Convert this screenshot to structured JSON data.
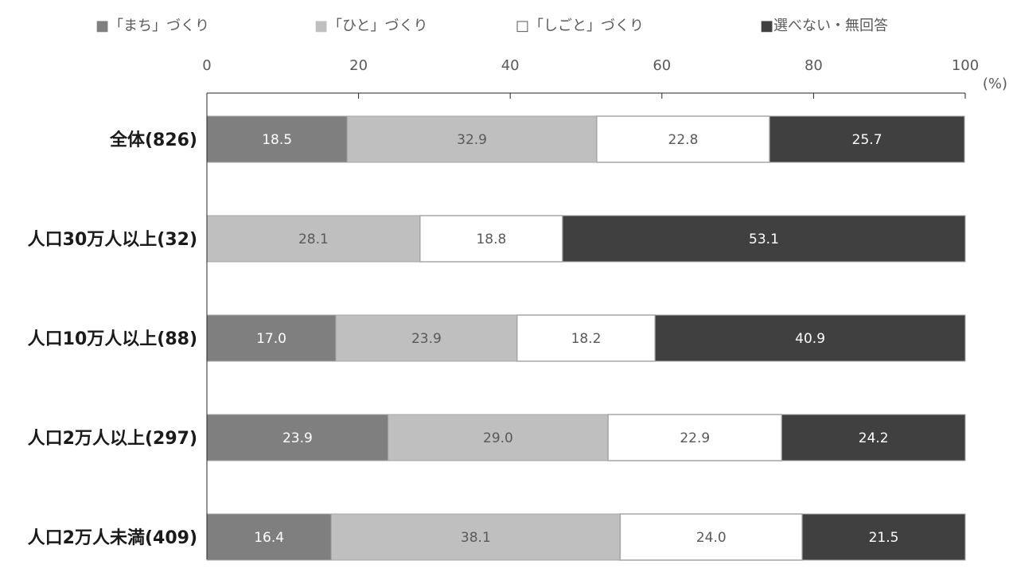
{
  "chart_data": {
    "type": "bar",
    "orientation": "horizontal",
    "stacked": true,
    "unit_label": "(%)",
    "xlim": [
      0,
      100
    ],
    "x_ticks": [
      "0",
      "20",
      "40",
      "60",
      "80",
      "100"
    ],
    "legend_position": "top",
    "categories": [
      "全体(826)",
      "人口30万人以上(32)",
      "人口10万人以上(88)",
      "人口2万人以上(297)",
      "人口2万人未満(409)"
    ],
    "series": [
      {
        "name": "「まち」づくり",
        "legend_marker": "■",
        "color": "#7f7f7f",
        "label_color": "#ffffff",
        "values": [
          18.5,
          0,
          17.0,
          23.9,
          16.4
        ]
      },
      {
        "name": "「ひと」づくり",
        "legend_marker": "■",
        "color": "#bfbfbf",
        "label_color": "#595959",
        "values": [
          32.9,
          28.1,
          23.9,
          29.0,
          38.1
        ]
      },
      {
        "name": "「しごと」づくり",
        "legend_marker": "□",
        "color": "#ffffff",
        "label_color": "#595959",
        "values": [
          22.8,
          18.8,
          18.2,
          22.9,
          24.0
        ]
      },
      {
        "name": "選べない・無回答",
        "legend_marker": "■",
        "color": "#404040",
        "label_color": "#ffffff",
        "values": [
          25.7,
          53.1,
          40.9,
          24.2,
          21.5
        ]
      }
    ],
    "title": "",
    "xlabel": "",
    "ylabel": "",
    "grid": false
  }
}
